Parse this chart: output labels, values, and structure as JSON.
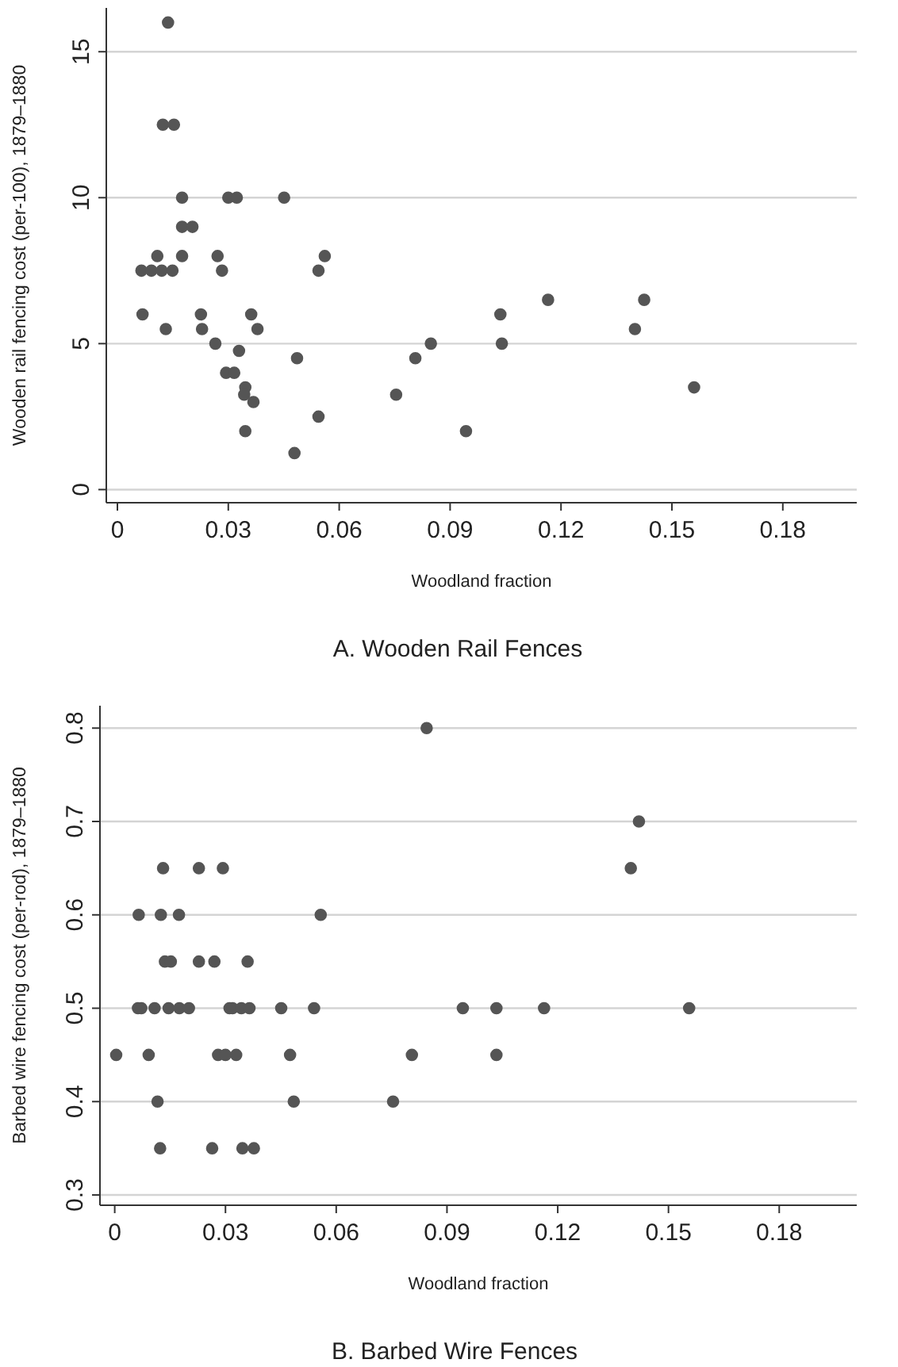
{
  "chart_data": [
    {
      "type": "scatter",
      "title": "A. Wooden Rail Fences",
      "xlabel": "Woodland fraction",
      "ylabel": "Wooden rail fencing cost (per-100), 1879–1880",
      "xlim": [
        -0.003,
        0.2
      ],
      "ylim": [
        -0.45,
        16.5
      ],
      "xticks": [
        0,
        0.03,
        0.06,
        0.09,
        0.12,
        0.15,
        0.18
      ],
      "yticks": [
        0,
        5,
        10,
        15
      ],
      "grid": "y",
      "marker": "circle",
      "series": [
        {
          "color": "#555555",
          "x": [
            0.0137,
            0.0123,
            0.0153,
            0.0175,
            0.03,
            0.0323,
            0.0451,
            0.0175,
            0.0203,
            0.0065,
            0.0092,
            0.012,
            0.0149,
            0.0108,
            0.0175,
            0.0271,
            0.0283,
            0.0544,
            0.0561,
            0.0068,
            0.0131,
            0.0226,
            0.0229,
            0.0362,
            0.0379,
            0.0265,
            0.0329,
            0.0294,
            0.0316,
            0.0486,
            0.0346,
            0.0343,
            0.0368,
            0.0346,
            0.0544,
            0.0479,
            0.0754,
            0.0806,
            0.0848,
            0.0943,
            0.1036,
            0.104,
            0.1165,
            0.1425,
            0.14,
            0.156
          ],
          "values": [
            16,
            12.5,
            12.5,
            10,
            10,
            10,
            10,
            9,
            9,
            7.5,
            7.5,
            7.5,
            7.5,
            8,
            8,
            8,
            7.5,
            7.5,
            8,
            6,
            5.5,
            6,
            5.5,
            6,
            5.5,
            5,
            4.75,
            4,
            4,
            4.5,
            3.5,
            3.25,
            3,
            2,
            2.5,
            1.25,
            3.25,
            4.5,
            5,
            2,
            6,
            5,
            6.5,
            6.5,
            5.5,
            3.5
          ]
        }
      ]
    },
    {
      "type": "scatter",
      "title": "B. Barbed Wire Fences",
      "xlabel": "Woodland fraction",
      "ylabel": "Barbed wire fencing cost (per-rod), 1879–1880",
      "xlim": [
        -0.004,
        0.201
      ],
      "ylim": [
        0.289,
        0.824
      ],
      "xticks": [
        0,
        0.03,
        0.06,
        0.09,
        0.12,
        0.15,
        0.18
      ],
      "yticks": [
        0.3,
        0.4,
        0.5,
        0.6,
        0.7,
        0.8
      ],
      "grid": "y",
      "marker": "circle",
      "series": [
        {
          "color": "#555555",
          "x": [
            0.0004,
            0.0065,
            0.0063,
            0.0072,
            0.0092,
            0.0108,
            0.0116,
            0.0123,
            0.0125,
            0.0131,
            0.0136,
            0.0152,
            0.0146,
            0.0174,
            0.0175,
            0.0201,
            0.0228,
            0.0228,
            0.0264,
            0.027,
            0.028,
            0.03,
            0.0329,
            0.0293,
            0.0311,
            0.0319,
            0.0343,
            0.0365,
            0.0346,
            0.0377,
            0.036,
            0.0451,
            0.0475,
            0.0485,
            0.054,
            0.0558,
            0.0845,
            0.0754,
            0.0805,
            0.0943,
            0.1034,
            0.1034,
            0.1163,
            0.142,
            0.1398,
            0.1556
          ],
          "values": [
            0.45,
            0.6,
            0.5,
            0.5,
            0.45,
            0.5,
            0.4,
            0.35,
            0.6,
            0.65,
            0.55,
            0.55,
            0.5,
            0.6,
            0.5,
            0.5,
            0.65,
            0.55,
            0.35,
            0.55,
            0.45,
            0.45,
            0.45,
            0.65,
            0.5,
            0.5,
            0.5,
            0.5,
            0.35,
            0.35,
            0.55,
            0.5,
            0.45,
            0.4,
            0.5,
            0.6,
            0.8,
            0.4,
            0.45,
            0.5,
            0.5,
            0.45,
            0.5,
            0.7,
            0.65,
            0.5
          ]
        }
      ]
    }
  ]
}
